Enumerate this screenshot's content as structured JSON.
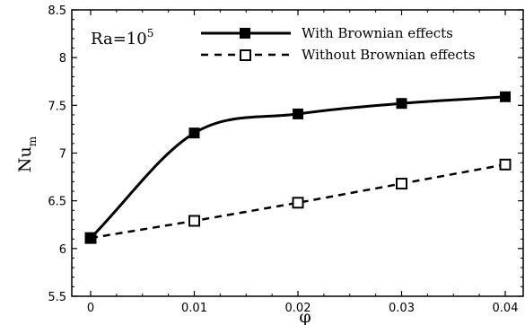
{
  "chart_data": {
    "type": "line",
    "x": [
      0,
      0.01,
      0.02,
      0.03,
      0.04
    ],
    "xticks": [
      "0",
      "0.01",
      "0.02",
      "0.03",
      "0.04"
    ],
    "yticks": [
      "5.5",
      "6",
      "6.5",
      "7",
      "7.5",
      "8",
      "8.5"
    ],
    "xlim": [
      0,
      0.04
    ],
    "ylim": [
      5.5,
      8.5
    ],
    "xlabel": "φ",
    "ylabel_base": "Nu",
    "ylabel_sub": "m",
    "annotation_base": "Ra=10",
    "annotation_sup": "5",
    "grid": false,
    "legend_position": "top-right",
    "series": [
      {
        "name": "With Brownian effects",
        "values": [
          6.11,
          7.21,
          7.41,
          7.52,
          7.59
        ],
        "marker": "filled-square",
        "line": "solid",
        "color": "#000000"
      },
      {
        "name": "Without Brownian effects",
        "values": [
          6.11,
          6.29,
          6.48,
          6.68,
          6.88
        ],
        "marker": "hollow-square",
        "line": "dashed",
        "color": "#000000"
      }
    ]
  }
}
